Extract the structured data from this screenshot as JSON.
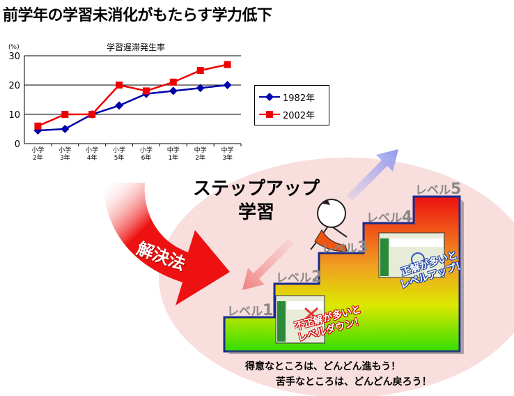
{
  "page": {
    "title": "前学年の学習未消化がもたらす学力低下"
  },
  "chart_data": {
    "type": "line",
    "title": "学習遅滞発生率",
    "y_unit": "(%)",
    "categories": [
      "小学2年",
      "小学3年",
      "小学4年",
      "小学5年",
      "小学6年",
      "中学1年",
      "中学2年",
      "中学3年"
    ],
    "category_lines": [
      [
        "小学",
        "2年"
      ],
      [
        "小学",
        "3年"
      ],
      [
        "小学",
        "4年"
      ],
      [
        "小学",
        "5年"
      ],
      [
        "小学",
        "6年"
      ],
      [
        "中学",
        "1年"
      ],
      [
        "中学",
        "2年"
      ],
      [
        "中学",
        "3年"
      ]
    ],
    "ylim": [
      0,
      30
    ],
    "yticks": [
      0,
      10,
      20,
      30
    ],
    "grid": true,
    "legend_position": "right",
    "series": [
      {
        "name": "1982年",
        "color": "#0000aa",
        "marker": "diamond",
        "values": [
          4.5,
          5,
          10,
          13,
          17,
          18,
          19,
          20
        ]
      },
      {
        "name": "2002年",
        "color": "#ee0000",
        "marker": "square",
        "values": [
          6,
          10,
          10,
          20,
          18,
          21,
          25,
          27
        ]
      }
    ]
  },
  "solution": {
    "label": "解決法",
    "title_line1": "ステップアップ",
    "title_line2": "学習"
  },
  "levels": [
    {
      "prefix": "レベル",
      "num": "1"
    },
    {
      "prefix": "レベル",
      "num": "2"
    },
    {
      "prefix": "レベル",
      "num": "3"
    },
    {
      "prefix": "レベル",
      "num": "4"
    },
    {
      "prefix": "レベル",
      "num": "5"
    }
  ],
  "callouts": {
    "up_line1": "正解が多いと",
    "up_line2": "レベルアップ！",
    "down_line1": "不正解が多いと",
    "down_line2": "レベルダウン！"
  },
  "bottom": {
    "line1": "得意なところは、どんどん進もう！",
    "line2": "苦手なところは、どんどん戻ろう！"
  },
  "colors": {
    "arrow_red": "#ee1111",
    "ellipse": "#f9dede",
    "stairs_top": "#ee1111",
    "stairs_bottom": "#33dd00",
    "stairs_border": "#1a2a8a",
    "arrow_up": "#aab0ee",
    "arrow_down": "#f0a0a0"
  }
}
